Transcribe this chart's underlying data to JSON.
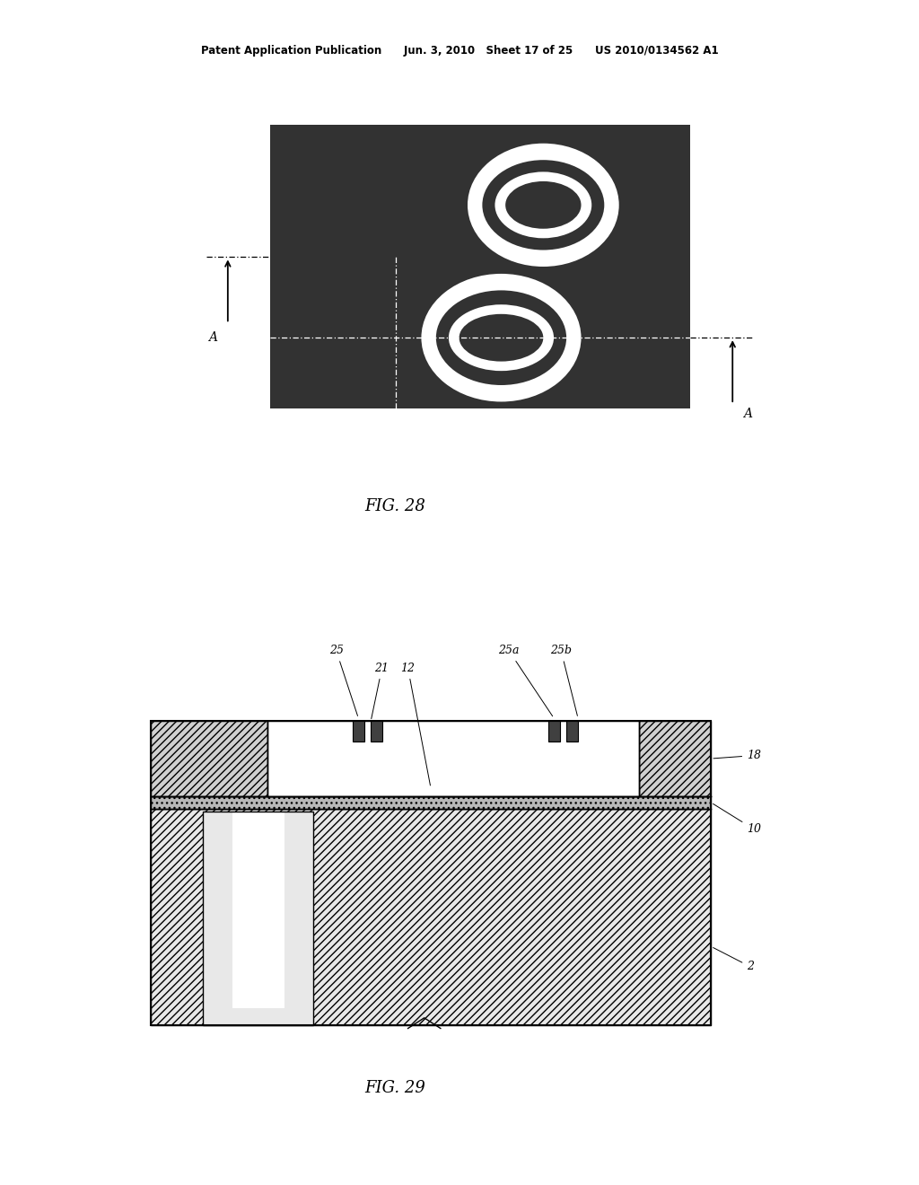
{
  "fig_width": 10.24,
  "fig_height": 13.2,
  "bg_color": "#ffffff",
  "header_text": "Patent Application Publication      Jun. 3, 2010   Sheet 17 of 25      US 2010/0134562 A1",
  "fig28_label": "FIG. 28",
  "fig29_label": "FIG. 29",
  "dark_bg": "#323232",
  "white": "#ffffff",
  "black": "#000000",
  "hatch_fg": "#606060",
  "light_gray": "#c8c8c8",
  "mid_gray": "#a0a0a0",
  "dark_gray": "#505050"
}
